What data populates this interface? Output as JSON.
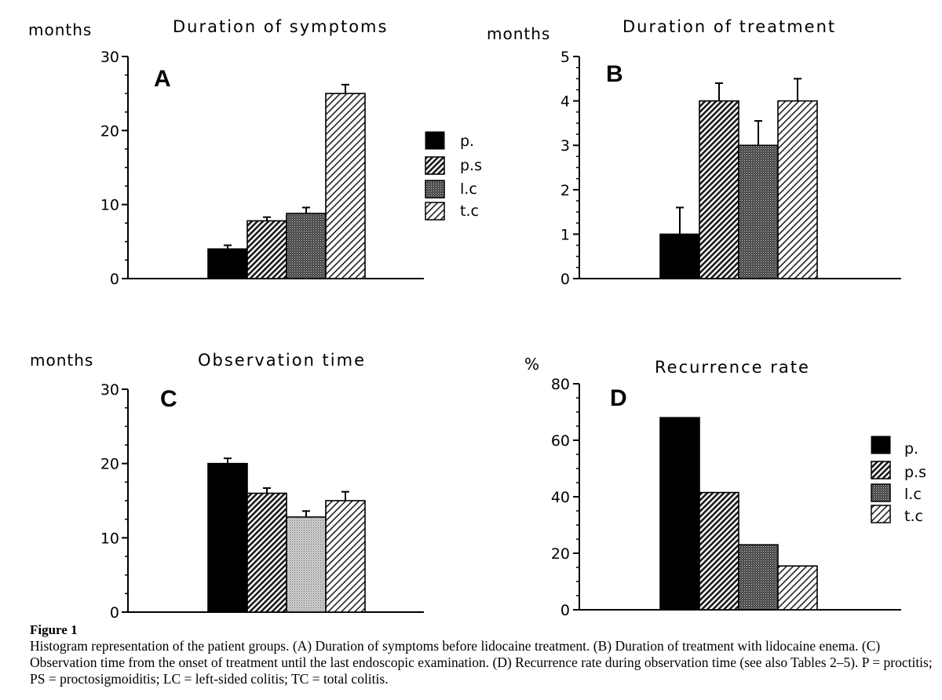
{
  "legend": {
    "entries": [
      {
        "key": "p",
        "label": "p."
      },
      {
        "key": "ps",
        "label": "p.s"
      },
      {
        "key": "lc",
        "label": "l.c"
      },
      {
        "key": "tc",
        "label": "t.c"
      }
    ]
  },
  "chart_data": [
    {
      "type": "bar",
      "panel": "A",
      "title": "Duration of symptoms",
      "ylabel": "months",
      "ylim": [
        0,
        30
      ],
      "yticks": [
        0,
        10,
        20,
        30
      ],
      "categories": [
        "p.",
        "p.s",
        "l.c",
        "t.c"
      ],
      "values": [
        4,
        7.8,
        8.8,
        25
      ],
      "errors": [
        0.5,
        0.5,
        0.8,
        1.2
      ],
      "legend_position": "right"
    },
    {
      "type": "bar",
      "panel": "B",
      "title": "Duration of treatment",
      "ylabel": "months",
      "ylim": [
        0,
        5
      ],
      "yticks": [
        0,
        1,
        2,
        3,
        4,
        5
      ],
      "categories": [
        "p.",
        "p.s",
        "l.c",
        "t.c"
      ],
      "values": [
        1,
        4,
        3,
        4
      ],
      "errors": [
        0.6,
        0.4,
        0.55,
        0.5
      ]
    },
    {
      "type": "bar",
      "panel": "C",
      "title": "Observation time",
      "ylabel": "months",
      "ylim": [
        0,
        30
      ],
      "yticks": [
        0,
        10,
        20,
        30
      ],
      "categories": [
        "p.",
        "p.s",
        "l.c",
        "t.c"
      ],
      "values": [
        20,
        16,
        12.8,
        15
      ],
      "errors": [
        0.7,
        0.7,
        0.8,
        1.2
      ]
    },
    {
      "type": "bar",
      "panel": "D",
      "title": "Recurrence rate",
      "ylabel": "%",
      "ylim": [
        0,
        80
      ],
      "yticks": [
        0,
        20,
        40,
        60,
        80
      ],
      "categories": [
        "p.",
        "p.s",
        "l.c",
        "t.c"
      ],
      "values": [
        68,
        41.5,
        23,
        15.5
      ],
      "errors": [
        0,
        0,
        0,
        0
      ],
      "legend_position": "right"
    }
  ],
  "caption": {
    "label": "Figure 1",
    "text": "Histogram representation of the patient groups. (A) Duration of symptoms before lidocaine treatment. (B) Duration of treatment with lidocaine enema. (C) Observation time from the onset of treatment until the last endoscopic examination. (D) Recurrence rate during observation time (see also Tables 2–5). P = proctitis; PS = proctosigmoiditis; LC = left-sided colitis; TC = total colitis."
  }
}
